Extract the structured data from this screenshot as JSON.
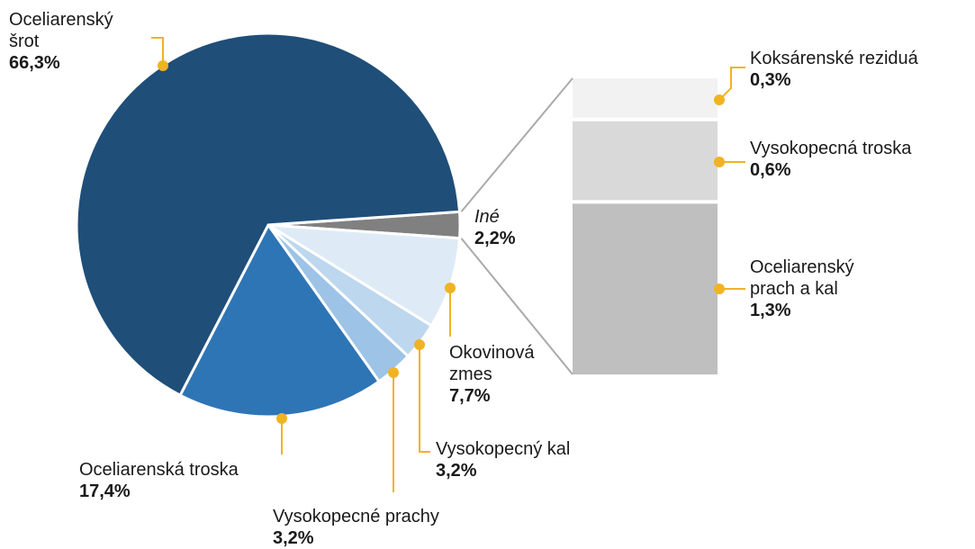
{
  "chart_data": {
    "type": "pie",
    "categories": [
      "Iné",
      "Okovinová zmes",
      "Vysokopecný kal",
      "Vysokopecné prachy",
      "Oceliarenská troska",
      "Oceliarenský šrot"
    ],
    "values": [
      2.2,
      7.7,
      3.2,
      3.2,
      17.4,
      66.3
    ],
    "value_labels": [
      "2,2%",
      "7,7%",
      "3,2%",
      "3,2%",
      "17,4%",
      "66,3%"
    ],
    "colors": [
      "#808080",
      "#deebf7",
      "#bdd7ee",
      "#9dc3e6",
      "#2e75b6",
      "#1f4e79"
    ],
    "bar": {
      "categories": [
        "Koksárenské reziduá",
        "Vysokopecná troska",
        "Oceliarenský prach a kal"
      ],
      "values": [
        0.3,
        0.6,
        1.3
      ],
      "value_labels": [
        "0,3%",
        "0,6%",
        "1,3%"
      ],
      "colors": [
        "#f2f2f2",
        "#d9d9d9",
        "#bfbfbf"
      ]
    }
  }
}
